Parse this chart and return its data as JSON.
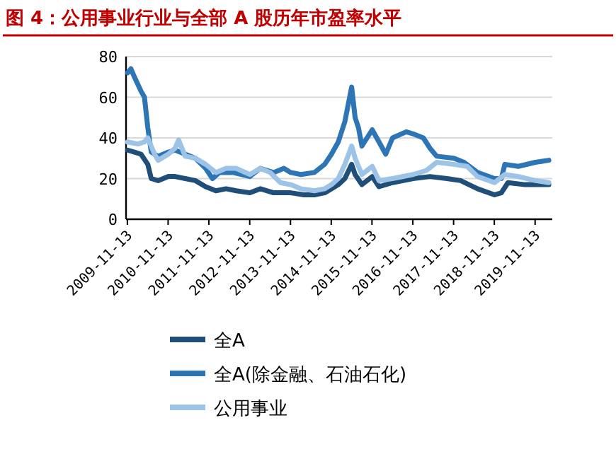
{
  "chart_data": {
    "type": "line",
    "title": "图 4：公用事业行业与全部 A 股历年市盈率水平",
    "xlim": [
      "2009-11-01",
      "2020-04-15"
    ],
    "xticks": [
      "2009-11-13",
      "2010-11-13",
      "2011-11-13",
      "2012-11-13",
      "2013-11-13",
      "2014-11-13",
      "2015-11-13",
      "2016-11-13",
      "2017-11-13",
      "2018-11-13",
      "2019-11-13"
    ],
    "ylim": [
      0,
      80
    ],
    "yticks": [
      0,
      20,
      40,
      60,
      80
    ],
    "grid": "y",
    "legend": "bottom",
    "line_style": "solid",
    "marker": "none",
    "series": [
      {
        "name": "全A",
        "color": "#1f4e79",
        "x": [
          "2009-11",
          "2010-01",
          "2010-03",
          "2010-05",
          "2010-06",
          "2010-08",
          "2010-11",
          "2011-01",
          "2011-04",
          "2011-07",
          "2011-10",
          "2012-01",
          "2012-04",
          "2012-07",
          "2012-11",
          "2013-02",
          "2013-06",
          "2013-11",
          "2014-03",
          "2014-06",
          "2014-09",
          "2014-11",
          "2015-01",
          "2015-03",
          "2015-05",
          "2015-06",
          "2015-08",
          "2015-11",
          "2016-01",
          "2016-05",
          "2016-11",
          "2017-04",
          "2017-09",
          "2018-01",
          "2018-06",
          "2018-11",
          "2019-01",
          "2019-03",
          "2019-08",
          "2020-03"
        ],
        "values": [
          34,
          33,
          32,
          27,
          20,
          19,
          21,
          21,
          20,
          19,
          16,
          14,
          15,
          14,
          13,
          15,
          13,
          13,
          12,
          12,
          13,
          15,
          17,
          20,
          27,
          22,
          17,
          21,
          16,
          18,
          20,
          21,
          20,
          19,
          15,
          12,
          13,
          18,
          17,
          17
        ]
      },
      {
        "name": "全A(除金融、石油石化)",
        "color": "#2e75b6",
        "x": [
          "2009-11",
          "2009-12",
          "2010-01",
          "2010-03",
          "2010-04",
          "2010-05",
          "2010-06",
          "2010-08",
          "2010-11",
          "2011-01",
          "2011-04",
          "2011-07",
          "2011-10",
          "2011-12",
          "2012-02",
          "2012-06",
          "2012-11",
          "2013-02",
          "2013-06",
          "2013-09",
          "2013-11",
          "2014-02",
          "2014-06",
          "2014-09",
          "2014-11",
          "2015-01",
          "2015-03",
          "2015-05",
          "2015-06",
          "2015-07",
          "2015-08",
          "2015-11",
          "2016-01",
          "2016-03",
          "2016-05",
          "2016-09",
          "2016-11",
          "2017-02",
          "2017-04",
          "2017-06",
          "2017-11",
          "2018-02",
          "2018-06",
          "2018-11",
          "2019-01",
          "2019-02",
          "2019-06",
          "2019-11",
          "2020-03"
        ],
        "values": [
          72,
          74,
          70,
          63,
          60,
          45,
          33,
          31,
          33,
          34,
          32,
          30,
          25,
          20,
          23,
          23,
          21,
          25,
          23,
          25,
          23,
          22,
          23,
          27,
          32,
          38,
          48,
          65,
          50,
          45,
          36,
          44,
          38,
          32,
          40,
          43,
          42,
          40,
          35,
          31,
          30,
          28,
          23,
          20,
          20,
          27,
          26,
          28,
          29
        ]
      },
      {
        "name": "公用事业",
        "color": "#9dc3e6",
        "x": [
          "2009-11",
          "2010-02",
          "2010-04",
          "2010-05",
          "2010-07",
          "2010-08",
          "2010-11",
          "2011-01",
          "2011-02",
          "2011-04",
          "2011-07",
          "2011-10",
          "2012-01",
          "2012-04",
          "2012-07",
          "2012-11",
          "2013-02",
          "2013-05",
          "2013-08",
          "2013-11",
          "2014-02",
          "2014-06",
          "2014-09",
          "2014-11",
          "2015-01",
          "2015-03",
          "2015-05",
          "2015-06",
          "2015-08",
          "2015-11",
          "2016-01",
          "2016-05",
          "2016-11",
          "2017-03",
          "2017-06",
          "2017-11",
          "2018-03",
          "2018-06",
          "2018-11",
          "2019-02",
          "2019-06",
          "2019-11",
          "2020-03"
        ],
        "values": [
          38,
          37,
          38,
          40,
          32,
          29,
          32,
          35,
          39,
          31,
          30,
          27,
          23,
          25,
          25,
          22,
          25,
          23,
          18,
          17,
          15,
          14,
          15,
          17,
          20,
          27,
          36,
          30,
          22,
          26,
          19,
          20,
          22,
          24,
          28,
          27,
          26,
          21,
          18,
          22,
          21,
          19,
          18
        ]
      }
    ]
  }
}
